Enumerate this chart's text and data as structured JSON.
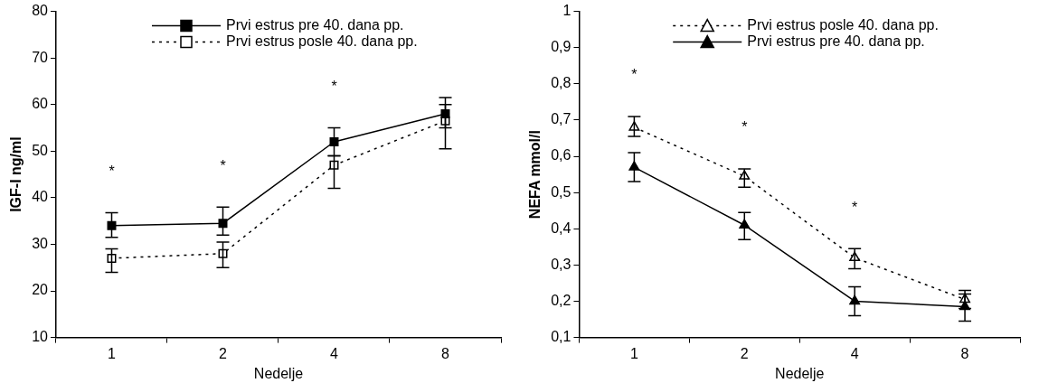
{
  "chart_data": [
    {
      "type": "line",
      "xlabel": "Nedelje",
      "ylabel": "IGF-I ng/ml",
      "categories": [
        "1",
        "2",
        "4",
        "8"
      ],
      "ylim": [
        10,
        80
      ],
      "yticks": [
        10,
        20,
        30,
        40,
        50,
        60,
        70,
        80
      ],
      "grid": false,
      "legend": "top",
      "marker": "square",
      "series": [
        {
          "name": "Prvi estrus pre 40. dana pp.",
          "color": "#000000",
          "line_style": "solid",
          "values": [
            34,
            34.5,
            52,
            58
          ],
          "errors": [
            [
              31.5,
              36.8
            ],
            [
              32,
              38
            ],
            [
              49,
              55
            ],
            [
              55,
              61.5
            ]
          ]
        },
        {
          "name": "Prvi estrus posle 40. dana pp.",
          "color": "#000000",
          "line_style": "dotted",
          "values": [
            27,
            28,
            47,
            56.5
          ],
          "errors": [
            [
              24,
              29
            ],
            [
              25,
              30.5
            ],
            [
              42,
              49
            ],
            [
              50.5,
              60
            ]
          ]
        }
      ],
      "annotations": [
        "*",
        "*",
        "*"
      ]
    },
    {
      "type": "line",
      "xlabel": "Nedelje",
      "ylabel": "NEFA mmol/l",
      "categories": [
        "1",
        "2",
        "4",
        "8"
      ],
      "ylim": [
        0.1,
        1
      ],
      "yticks": [
        {
          "value": 0.1,
          "label": "0,1"
        },
        {
          "value": 0.2,
          "label": "0,2"
        },
        {
          "value": 0.3,
          "label": "0,3"
        },
        {
          "value": 0.4,
          "label": "0,4"
        },
        {
          "value": 0.5,
          "label": "0,5"
        },
        {
          "value": 0.6,
          "label": "0,6"
        },
        {
          "value": 0.7,
          "label": "0,7"
        },
        {
          "value": 0.8,
          "label": "0,8"
        },
        {
          "value": 0.9,
          "label": "0,9"
        },
        1
      ],
      "grid": false,
      "legend": "top",
      "marker": "triangle",
      "series": [
        {
          "name": "Prvi estrus posle 40. dana pp.",
          "color": "#000000",
          "line_style": "dotted",
          "values": [
            0.68,
            0.545,
            0.32,
            0.205
          ],
          "errors": [
            [
              0.655,
              0.71
            ],
            [
              0.515,
              0.565
            ],
            [
              0.29,
              0.345
            ],
            [
              0.18,
              0.23
            ]
          ]
        },
        {
          "name": "Prvi estrus pre 40. dana pp.",
          "color": "#000000",
          "line_style": "solid",
          "values": [
            0.57,
            0.41,
            0.2,
            0.185
          ],
          "errors": [
            [
              0.53,
              0.61
            ],
            [
              0.37,
              0.445
            ],
            [
              0.16,
              0.24
            ],
            [
              0.145,
              0.22
            ]
          ]
        }
      ],
      "annotations": [
        "*",
        "*",
        "*"
      ]
    }
  ]
}
